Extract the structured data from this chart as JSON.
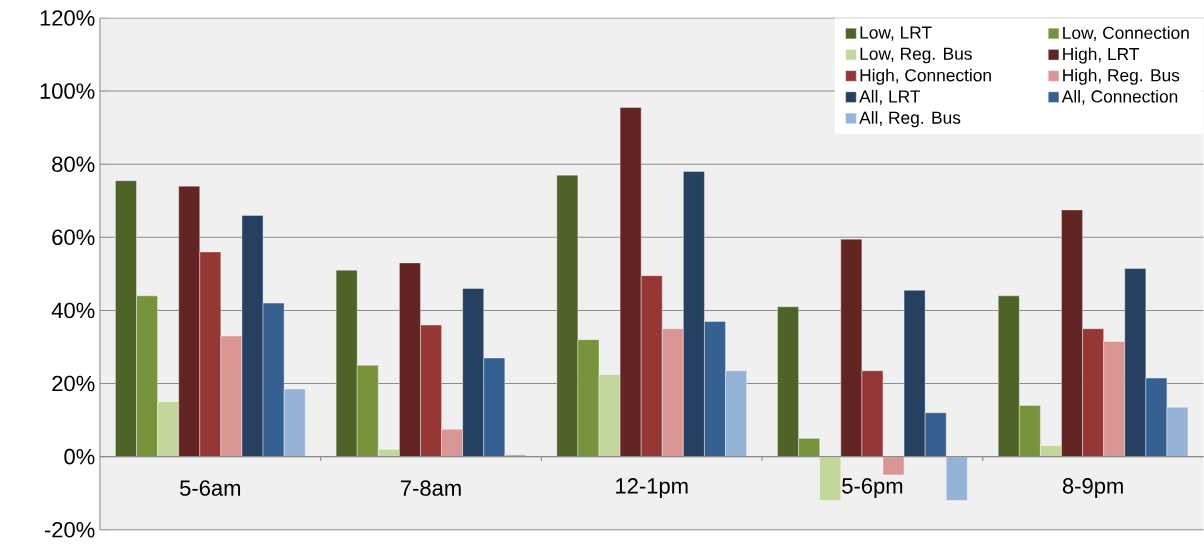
{
  "chart_data": {
    "type": "bar",
    "categories": [
      "5-6am",
      "7-8am",
      "12-1pm",
      "5-6pm",
      "8-9pm"
    ],
    "series": [
      {
        "name": "Low, LRT",
        "color": "#4f6228",
        "values": [
          75.5,
          51,
          77,
          41,
          44
        ]
      },
      {
        "name": "Low, Connection",
        "color": "#77933c",
        "values": [
          44,
          25,
          32,
          5,
          14
        ]
      },
      {
        "name": "Low, Reg. Bus",
        "color": "#c3d69b",
        "values": [
          15,
          2,
          22.5,
          -12,
          3
        ]
      },
      {
        "name": "High, LRT",
        "color": "#632523",
        "values": [
          74,
          53,
          95.5,
          59.5,
          67.5
        ]
      },
      {
        "name": "High, Connection",
        "color": "#953735",
        "values": [
          56,
          36,
          49.5,
          23.5,
          35
        ]
      },
      {
        "name": "High, Reg. Bus",
        "color": "#d99694",
        "values": [
          33,
          7.5,
          35,
          -5,
          31.5
        ]
      },
      {
        "name": "All, LRT",
        "color": "#254061",
        "values": [
          66,
          46,
          78,
          45.5,
          51.5
        ]
      },
      {
        "name": "All, Connection",
        "color": "#376092",
        "values": [
          42,
          27,
          37,
          12,
          21.5
        ]
      },
      {
        "name": "All, Reg. Bus",
        "color": "#95b3d7",
        "values": [
          18.5,
          0.5,
          23.5,
          -12,
          13.5
        ]
      }
    ],
    "ylim": [
      -20,
      120
    ],
    "yticks": [
      {
        "value": -20,
        "label": "-20%"
      },
      {
        "value": 0,
        "label": "0%"
      },
      {
        "value": 20,
        "label": "20%"
      },
      {
        "value": 40,
        "label": "40%"
      },
      {
        "value": 60,
        "label": "60%"
      },
      {
        "value": 80,
        "label": "80%"
      },
      {
        "value": 100,
        "label": "100%"
      },
      {
        "value": 120,
        "label": "120%"
      }
    ],
    "grid": "y",
    "legend": "top right"
  }
}
